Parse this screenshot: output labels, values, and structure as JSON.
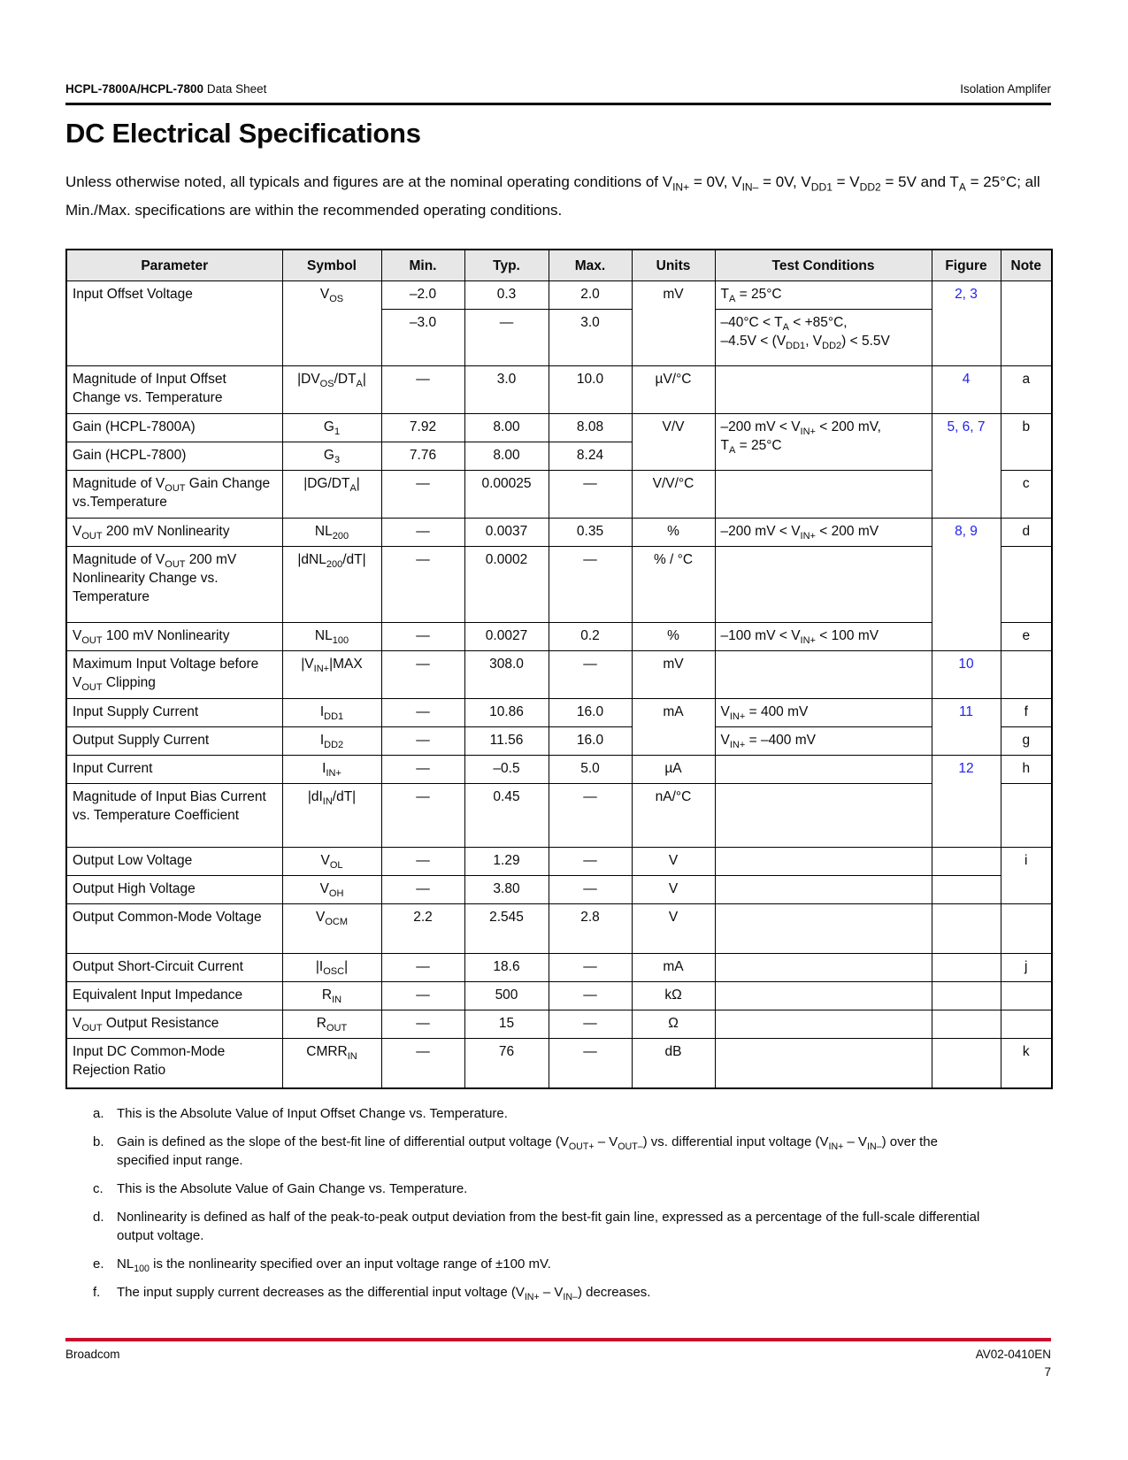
{
  "page_header": {
    "product": "HCPL-7800A/HCPL-7800",
    "doc_type": "Data Sheet",
    "right_text": "Isolation Amplifer"
  },
  "title": "DC Electrical Specifications",
  "intro": "Unless otherwise noted, all typicals and figures are at the nominal operating conditions of V_{IN+} = 0V, V_{IN–} = 0V, V_{DD1} = V_{DD2} = 5V and T_{A} = 25°C; all Min./Max. specifications are within the recommended operating conditions.",
  "colors": {
    "accent_red": "#C8102E",
    "figure_link_blue": "#2222EE",
    "table_header_gray": "#E7E7E7"
  },
  "table": {
    "columns": [
      "Parameter",
      "Symbol",
      "Min.",
      "Typ.",
      "Max.",
      "Units",
      "Test Conditions",
      "Figure",
      "Note"
    ],
    "rows": [
      {
        "cells": [
          {
            "c": "p",
            "t": "Input Offset Voltage",
            "rs": 2
          },
          {
            "c": "s",
            "t": "V_{OS}",
            "rs": 2
          },
          {
            "c": "min",
            "t": "–2.0"
          },
          {
            "c": "typ",
            "t": "0.3"
          },
          {
            "c": "max",
            "t": "2.0"
          },
          {
            "c": "u",
            "t": "mV",
            "rs": 2
          },
          {
            "c": "tc",
            "t": "T_{A} = 25°C"
          },
          {
            "c": "fig",
            "t": "2, 3",
            "rs": 2
          },
          {
            "c": "note",
            "t": "",
            "rs": 2
          }
        ]
      },
      {
        "cells": [
          {
            "c": "min",
            "t": "–3.0"
          },
          {
            "c": "typ",
            "t": "—"
          },
          {
            "c": "max",
            "t": "3.0"
          },
          {
            "c": "tc",
            "t": "–40°C < T_{A} < +85°C,\n–4.5V < (V_{DD1}, V_{DD2}) < 5.5V"
          }
        ]
      },
      {
        "cells": [
          {
            "c": "p",
            "t": "Magnitude of Input Offset Change vs. Temperature"
          },
          {
            "c": "s",
            "t": "|DV_{OS}/DT_{A}|"
          },
          {
            "c": "min",
            "t": "—"
          },
          {
            "c": "typ",
            "t": "3.0"
          },
          {
            "c": "max",
            "t": "10.0"
          },
          {
            "c": "u",
            "t": "µV/°C"
          },
          {
            "c": "tc",
            "t": ""
          },
          {
            "c": "fig",
            "t": "4"
          },
          {
            "c": "note",
            "t": "a"
          }
        ]
      },
      {
        "cells": [
          {
            "c": "p",
            "t": "Gain (HCPL-7800A)"
          },
          {
            "c": "s",
            "t": "G_{1}"
          },
          {
            "c": "min",
            "t": "7.92"
          },
          {
            "c": "typ",
            "t": "8.00"
          },
          {
            "c": "max",
            "t": "8.08"
          },
          {
            "c": "u",
            "t": "V/V",
            "rs": 2
          },
          {
            "c": "tc",
            "t": "–200 mV < V_{IN+} < 200 mV,\nT_{A} = 25°C",
            "rs": 2
          },
          {
            "c": "fig",
            "t": "5, 6, 7",
            "rs": 3
          },
          {
            "c": "note",
            "t": "b",
            "rs": 2
          }
        ]
      },
      {
        "cells": [
          {
            "c": "p",
            "t": "Gain (HCPL-7800)"
          },
          {
            "c": "s",
            "t": "G_{3}"
          },
          {
            "c": "min",
            "t": "7.76"
          },
          {
            "c": "typ",
            "t": "8.00"
          },
          {
            "c": "max",
            "t": "8.24"
          }
        ]
      },
      {
        "cells": [
          {
            "c": "p",
            "t": "Magnitude of V_{OUT} Gain Change vs.Temperature"
          },
          {
            "c": "s",
            "t": "|DG/DT_{A}|"
          },
          {
            "c": "min",
            "t": "—"
          },
          {
            "c": "typ",
            "t": "0.00025"
          },
          {
            "c": "max",
            "t": "—"
          },
          {
            "c": "u",
            "t": "V/V/°C"
          },
          {
            "c": "tc",
            "t": ""
          },
          {
            "c": "note",
            "t": "c"
          }
        ]
      },
      {
        "cells": [
          {
            "c": "p",
            "t": "V_{OUT} 200 mV Nonlinearity"
          },
          {
            "c": "s",
            "t": "NL_{200}"
          },
          {
            "c": "min",
            "t": "—"
          },
          {
            "c": "typ",
            "t": "0.0037"
          },
          {
            "c": "max",
            "t": "0.35"
          },
          {
            "c": "u",
            "t": "%"
          },
          {
            "c": "tc",
            "t": "–200 mV < V_{IN+} < 200 mV"
          },
          {
            "c": "fig",
            "t": "8, 9",
            "rs": 3
          },
          {
            "c": "note",
            "t": "d"
          }
        ]
      },
      {
        "cells": [
          {
            "c": "p",
            "t": "Magnitude of V_{OUT} 200 mV Nonlinearity Change vs. Temperature"
          },
          {
            "c": "s",
            "t": "|dNL_{200}/dT|"
          },
          {
            "c": "min",
            "t": "—"
          },
          {
            "c": "typ",
            "t": "0.0002"
          },
          {
            "c": "max",
            "t": "—"
          },
          {
            "c": "u",
            "t": "% / °C"
          },
          {
            "c": "tc",
            "t": ""
          },
          {
            "c": "note",
            "t": ""
          }
        ]
      },
      {
        "cells": [
          {
            "c": "p",
            "t": "V_{OUT} 100 mV Nonlinearity"
          },
          {
            "c": "s",
            "t": "NL_{100}"
          },
          {
            "c": "min",
            "t": "—"
          },
          {
            "c": "typ",
            "t": "0.0027"
          },
          {
            "c": "max",
            "t": "0.2"
          },
          {
            "c": "u",
            "t": "%"
          },
          {
            "c": "tc",
            "t": "–100 mV < V_{IN+} < 100 mV"
          },
          {
            "c": "note",
            "t": "e"
          }
        ]
      },
      {
        "cells": [
          {
            "c": "p",
            "t": "Maximum Input Voltage before V_{OUT} Clipping"
          },
          {
            "c": "s",
            "t": "|V_{IN+}|MAX"
          },
          {
            "c": "min",
            "t": "—"
          },
          {
            "c": "typ",
            "t": "308.0"
          },
          {
            "c": "max",
            "t": "—"
          },
          {
            "c": "u",
            "t": "mV"
          },
          {
            "c": "tc",
            "t": ""
          },
          {
            "c": "fig",
            "t": "10"
          },
          {
            "c": "note",
            "t": ""
          }
        ]
      },
      {
        "cells": [
          {
            "c": "p",
            "t": "Input Supply Current"
          },
          {
            "c": "s",
            "t": "I_{DD1}"
          },
          {
            "c": "min",
            "t": "—"
          },
          {
            "c": "typ",
            "t": "10.86"
          },
          {
            "c": "max",
            "t": "16.0"
          },
          {
            "c": "u",
            "t": "mA",
            "rs": 2
          },
          {
            "c": "tc",
            "t": "V_{IN+} = 400 mV"
          },
          {
            "c": "fig",
            "t": "11",
            "rs": 2
          },
          {
            "c": "note",
            "t": "f"
          }
        ]
      },
      {
        "cells": [
          {
            "c": "p",
            "t": "Output Supply Current"
          },
          {
            "c": "s",
            "t": "I_{DD2}"
          },
          {
            "c": "min",
            "t": "—"
          },
          {
            "c": "typ",
            "t": "11.56"
          },
          {
            "c": "max",
            "t": "16.0"
          },
          {
            "c": "tc",
            "t": "V_{IN+} = –400 mV"
          },
          {
            "c": "note",
            "t": "g"
          }
        ]
      },
      {
        "cells": [
          {
            "c": "p",
            "t": "Input Current"
          },
          {
            "c": "s",
            "t": "I_{IN+}"
          },
          {
            "c": "min",
            "t": "—"
          },
          {
            "c": "typ",
            "t": "–0.5"
          },
          {
            "c": "max",
            "t": "5.0"
          },
          {
            "c": "u",
            "t": "µA"
          },
          {
            "c": "tc",
            "t": ""
          },
          {
            "c": "fig",
            "t": "12",
            "rs": 2
          },
          {
            "c": "note",
            "t": "h"
          }
        ]
      },
      {
        "cells": [
          {
            "c": "p",
            "t": "Magnitude of Input Bias Current vs. Temperature Coefficient"
          },
          {
            "c": "s",
            "t": "|dI_{IN}/dT|"
          },
          {
            "c": "min",
            "t": "—"
          },
          {
            "c": "typ",
            "t": "0.45"
          },
          {
            "c": "max",
            "t": "—"
          },
          {
            "c": "u",
            "t": "nA/°C"
          },
          {
            "c": "tc",
            "t": ""
          },
          {
            "c": "note",
            "t": ""
          }
        ]
      },
      {
        "cells": [
          {
            "c": "p",
            "t": "Output Low Voltage"
          },
          {
            "c": "s",
            "t": "V_{OL}"
          },
          {
            "c": "min",
            "t": "—"
          },
          {
            "c": "typ",
            "t": "1.29"
          },
          {
            "c": "max",
            "t": "—"
          },
          {
            "c": "u",
            "t": "V"
          },
          {
            "c": "tc",
            "t": ""
          },
          {
            "c": "fig",
            "t": ""
          },
          {
            "c": "note",
            "t": "i",
            "rs": 2
          }
        ]
      },
      {
        "cells": [
          {
            "c": "p",
            "t": "Output High Voltage"
          },
          {
            "c": "s",
            "t": "V_{OH}"
          },
          {
            "c": "min",
            "t": "—"
          },
          {
            "c": "typ",
            "t": "3.80"
          },
          {
            "c": "max",
            "t": "—"
          },
          {
            "c": "u",
            "t": "V"
          },
          {
            "c": "tc",
            "t": ""
          },
          {
            "c": "fig",
            "t": ""
          }
        ]
      },
      {
        "cells": [
          {
            "c": "p",
            "t": "Output Common-Mode Voltage"
          },
          {
            "c": "s",
            "t": "V_{OCM}"
          },
          {
            "c": "min",
            "t": "2.2"
          },
          {
            "c": "typ",
            "t": "2.545"
          },
          {
            "c": "max",
            "t": "2.8"
          },
          {
            "c": "u",
            "t": "V"
          },
          {
            "c": "tc",
            "t": ""
          },
          {
            "c": "fig",
            "t": ""
          },
          {
            "c": "note",
            "t": ""
          }
        ]
      },
      {
        "cells": [
          {
            "c": "p",
            "t": "Output Short-Circuit Current"
          },
          {
            "c": "s",
            "t": "|I_{OSC}|"
          },
          {
            "c": "min",
            "t": "—"
          },
          {
            "c": "typ",
            "t": "18.6"
          },
          {
            "c": "max",
            "t": "—"
          },
          {
            "c": "u",
            "t": "mA"
          },
          {
            "c": "tc",
            "t": ""
          },
          {
            "c": "fig",
            "t": ""
          },
          {
            "c": "note",
            "t": "j"
          }
        ]
      },
      {
        "cells": [
          {
            "c": "p",
            "t": "Equivalent Input Impedance"
          },
          {
            "c": "s",
            "t": "R_{IN}"
          },
          {
            "c": "min",
            "t": "—"
          },
          {
            "c": "typ",
            "t": "500"
          },
          {
            "c": "max",
            "t": "—"
          },
          {
            "c": "u",
            "t": "kΩ"
          },
          {
            "c": "tc",
            "t": ""
          },
          {
            "c": "fig",
            "t": ""
          },
          {
            "c": "note",
            "t": ""
          }
        ]
      },
      {
        "cells": [
          {
            "c": "p",
            "t": "V_{OUT} Output Resistance"
          },
          {
            "c": "s",
            "t": "R_{OUT}"
          },
          {
            "c": "min",
            "t": "—"
          },
          {
            "c": "typ",
            "t": "15"
          },
          {
            "c": "max",
            "t": "—"
          },
          {
            "c": "u",
            "t": "Ω"
          },
          {
            "c": "tc",
            "t": ""
          },
          {
            "c": "fig",
            "t": ""
          },
          {
            "c": "note",
            "t": ""
          }
        ]
      },
      {
        "cells": [
          {
            "c": "p",
            "t": "Input DC Common-Mode Rejection Ratio"
          },
          {
            "c": "s",
            "t": "CMRR_{IN}"
          },
          {
            "c": "min",
            "t": "—"
          },
          {
            "c": "typ",
            "t": "76"
          },
          {
            "c": "max",
            "t": "—"
          },
          {
            "c": "u",
            "t": "dB"
          },
          {
            "c": "tc",
            "t": ""
          },
          {
            "c": "fig",
            "t": ""
          },
          {
            "c": "note",
            "t": "k"
          }
        ]
      }
    ]
  },
  "footnotes": [
    {
      "letter": "a.",
      "text": "This is the Absolute Value of Input Offset Change vs. Temperature."
    },
    {
      "letter": "b.",
      "text": "Gain is defined as the slope of the best-fit line of differential output voltage (V_{OUT+} – V_{OUT–}) vs. differential input voltage (V_{IN+} – V_{IN–}) over the specified input range."
    },
    {
      "letter": "c.",
      "text": "This is the Absolute Value of Gain Change vs. Temperature."
    },
    {
      "letter": "d.",
      "text": "Nonlinearity is defined as half of the peak-to-peak output deviation from the best-fit gain line, expressed as a percentage of the full-scale differential output voltage."
    },
    {
      "letter": "e.",
      "text": "NL_{100} is the nonlinearity specified over an input voltage range of ±100 mV."
    },
    {
      "letter": "f.",
      "text": "The input supply current decreases as the differential input voltage (V_{IN+} – V_{IN–}) decreases."
    }
  ],
  "page_footer": {
    "company": "Broadcom",
    "doc_number": "AV02-0410EN",
    "page_number": "7"
  }
}
